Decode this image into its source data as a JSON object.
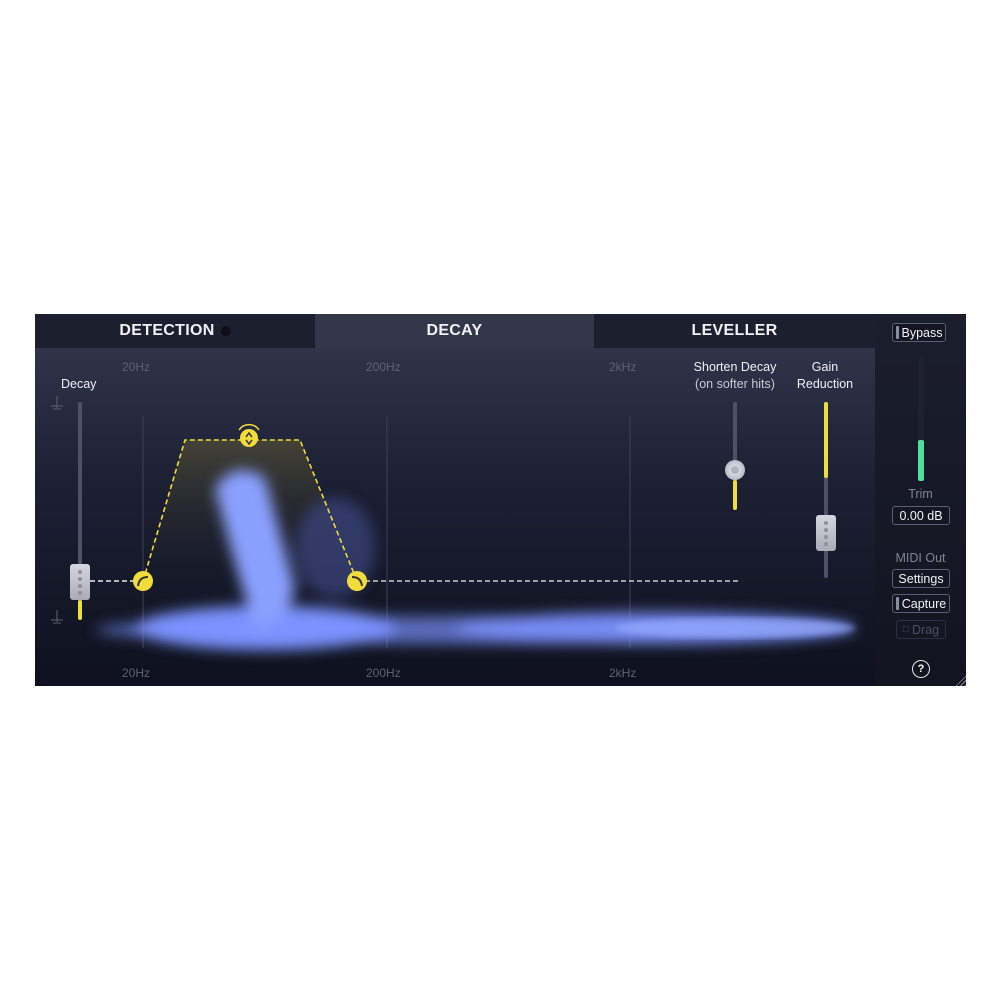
{
  "tabs": [
    {
      "label": "DETECTION"
    },
    {
      "label": "DECAY",
      "active": true
    },
    {
      "label": "LEVELLER"
    }
  ],
  "freq_labels": {
    "top": [
      "20Hz",
      "200Hz",
      "2kHz"
    ],
    "bottom": [
      "20Hz",
      "200Hz",
      "2kHz"
    ]
  },
  "decay": {
    "label": "Decay"
  },
  "shorten": {
    "label1": "Shorten Decay",
    "label2": "(on softer hits)"
  },
  "gain": {
    "label1": "Gain",
    "label2": "Reduction"
  },
  "right": {
    "bypass": "Bypass",
    "trim_label": "Trim",
    "trim_value": "0.00 dB",
    "midi_label": "MIDI Out",
    "settings": "Settings",
    "capture": "Capture",
    "drag": "Drag",
    "help": "?"
  },
  "colors": {
    "accent": "#f2dc3a",
    "meter": "#4fe0a0",
    "spectrum": "#7b93ff"
  }
}
